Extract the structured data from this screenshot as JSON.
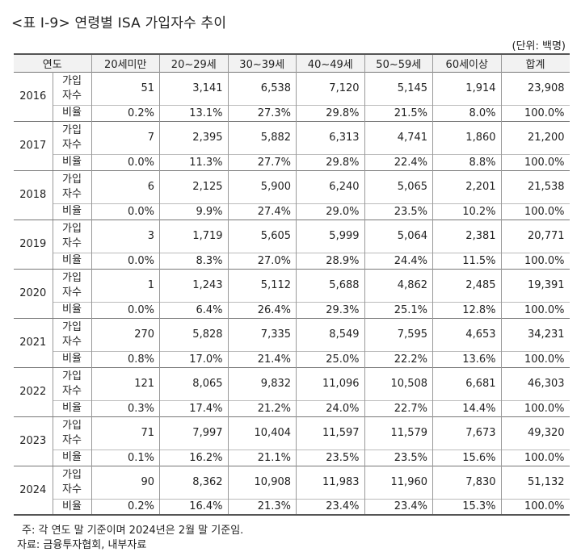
{
  "title": "<표 Ⅰ-9> 연령별 ISA 가입자수 추이",
  "unit": "(단위: 백명)",
  "table": {
    "headers": [
      "연도",
      "20세미만",
      "20~29세",
      "30~39세",
      "40~49세",
      "50~59세",
      "60세이상",
      "합계"
    ],
    "subscriber_label": "가입\n자수",
    "ratio_label": "비율",
    "rows": [
      {
        "year": "2016",
        "counts": [
          "51",
          "3,141",
          "6,538",
          "7,120",
          "5,145",
          "1,914",
          "23,908"
        ],
        "ratios": [
          "0.2%",
          "13.1%",
          "27.3%",
          "29.8%",
          "21.5%",
          "8.0%",
          "100.0%"
        ]
      },
      {
        "year": "2017",
        "counts": [
          "7",
          "2,395",
          "5,882",
          "6,313",
          "4,741",
          "1,860",
          "21,200"
        ],
        "ratios": [
          "0.0%",
          "11.3%",
          "27.7%",
          "29.8%",
          "22.4%",
          "8.8%",
          "100.0%"
        ]
      },
      {
        "year": "2018",
        "counts": [
          "6",
          "2,125",
          "5,900",
          "6,240",
          "5,065",
          "2,201",
          "21,538"
        ],
        "ratios": [
          "0.0%",
          "9.9%",
          "27.4%",
          "29.0%",
          "23.5%",
          "10.2%",
          "100.0%"
        ]
      },
      {
        "year": "2019",
        "counts": [
          "3",
          "1,719",
          "5,605",
          "5,999",
          "5,064",
          "2,381",
          "20,771"
        ],
        "ratios": [
          "0.0%",
          "8.3%",
          "27.0%",
          "28.9%",
          "24.4%",
          "11.5%",
          "100.0%"
        ]
      },
      {
        "year": "2020",
        "counts": [
          "1",
          "1,243",
          "5,112",
          "5,688",
          "4,862",
          "2,485",
          "19,391"
        ],
        "ratios": [
          "0.0%",
          "6.4%",
          "26.4%",
          "29.3%",
          "25.1%",
          "12.8%",
          "100.0%"
        ]
      },
      {
        "year": "2021",
        "counts": [
          "270",
          "5,828",
          "7,335",
          "8,549",
          "7,595",
          "4,653",
          "34,231"
        ],
        "ratios": [
          "0.8%",
          "17.0%",
          "21.4%",
          "25.0%",
          "22.2%",
          "13.6%",
          "100.0%"
        ]
      },
      {
        "year": "2022",
        "counts": [
          "121",
          "8,065",
          "9,832",
          "11,096",
          "10,508",
          "6,681",
          "46,303"
        ],
        "ratios": [
          "0.3%",
          "17.4%",
          "21.2%",
          "24.0%",
          "22.7%",
          "14.4%",
          "100.0%"
        ]
      },
      {
        "year": "2023",
        "counts": [
          "71",
          "7,997",
          "10,404",
          "11,597",
          "11,579",
          "7,673",
          "49,320"
        ],
        "ratios": [
          "0.1%",
          "16.2%",
          "21.1%",
          "23.5%",
          "23.5%",
          "15.6%",
          "100.0%"
        ]
      },
      {
        "year": "2024",
        "counts": [
          "90",
          "8,362",
          "10,908",
          "11,983",
          "11,960",
          "7,830",
          "51,132"
        ],
        "ratios": [
          "0.2%",
          "16.4%",
          "21.3%",
          "23.4%",
          "23.4%",
          "15.3%",
          "100.0%"
        ]
      }
    ]
  },
  "notes": {
    "note": "주: 각 연도 말 기준이며 2024년은 2월 말 기준임.",
    "source": "자료: 금융투자협회, 내부자료"
  }
}
